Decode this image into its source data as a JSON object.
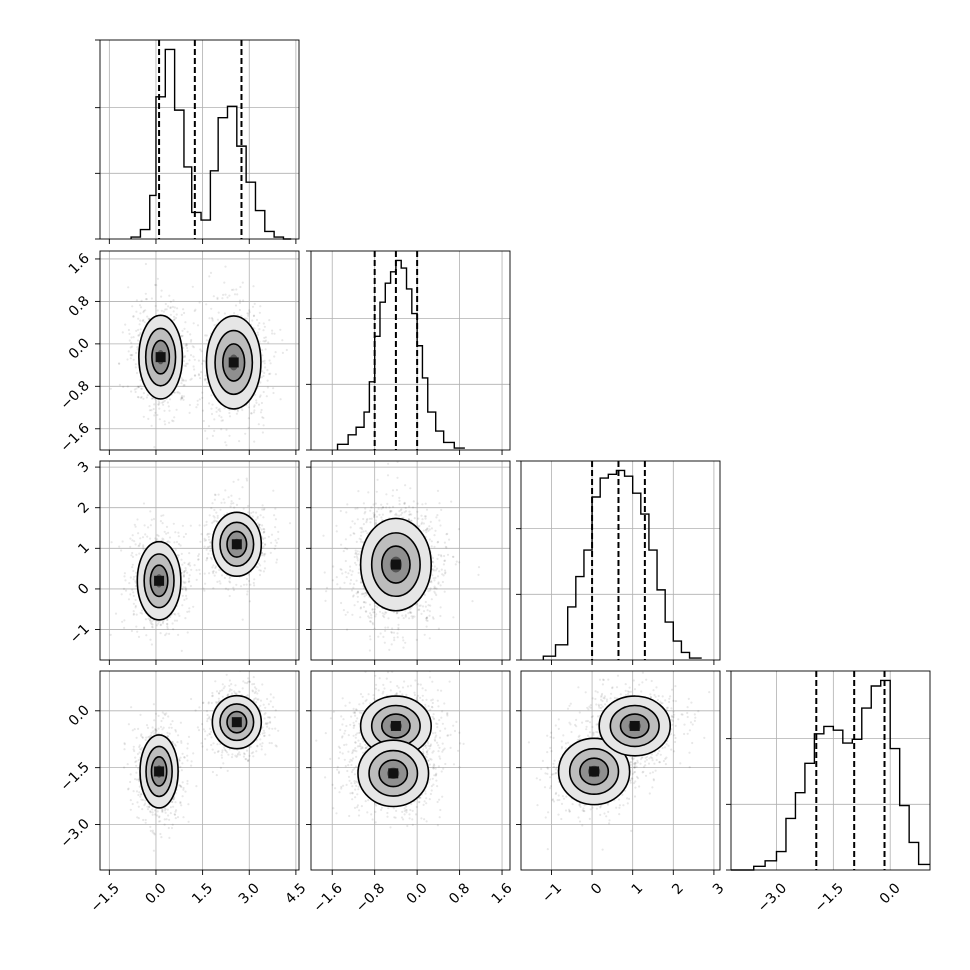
{
  "chart_data": {
    "type": "corner",
    "grid": true,
    "quantiles": [
      0.16,
      0.5,
      0.84
    ],
    "parameters": [
      {
        "range": [
          -1.8,
          4.6
        ],
        "ticks": [
          -1.5,
          0.0,
          1.5,
          3.0,
          4.5
        ],
        "tick_labels": [
          "−1.5",
          "0.0",
          "1.5",
          "3.0",
          "4.5"
        ],
        "quantile_values": [
          0.1,
          1.25,
          2.75
        ],
        "hist_bins": [
          -0.8,
          -0.5,
          -0.2,
          0.0,
          0.3,
          0.6,
          0.9,
          1.15,
          1.45,
          1.75,
          2.0,
          2.3,
          2.6,
          2.9,
          3.2,
          3.5,
          3.8,
          4.1,
          4.35
        ],
        "hist_counts": [
          1,
          5,
          23,
          75,
          100,
          68,
          38,
          14,
          10,
          36,
          64,
          70,
          49,
          30,
          15,
          4,
          1,
          0
        ]
      },
      {
        "range": [
          -2.0,
          1.75
        ],
        "ticks": [
          -1.6,
          -0.8,
          0.0,
          0.8,
          1.6
        ],
        "tick_labels": [
          "−1.6",
          "−0.8",
          "0.0",
          "0.8",
          "1.6"
        ],
        "quantile_values": [
          -0.8,
          -0.4,
          0.0
        ],
        "hist_bins": [
          -1.5,
          -1.3,
          -1.15,
          -1.0,
          -0.9,
          -0.8,
          -0.7,
          -0.6,
          -0.5,
          -0.4,
          -0.3,
          -0.2,
          -0.1,
          0.0,
          0.1,
          0.2,
          0.35,
          0.5,
          0.7,
          0.9
        ],
        "hist_counts": [
          3,
          8,
          12,
          20,
          36,
          60,
          78,
          88,
          94,
          100,
          96,
          85,
          72,
          55,
          38,
          20,
          10,
          4,
          1
        ],
        "qline_units": "display"
      },
      {
        "range": [
          -1.75,
          3.15
        ],
        "ticks": [
          -1,
          0,
          1,
          2,
          3
        ],
        "tick_labels": [
          "−1",
          "0",
          "1",
          "2",
          "3"
        ],
        "quantile_values": [
          0.0,
          0.65,
          1.3
        ],
        "hist_bins": [
          -1.2,
          -0.9,
          -0.6,
          -0.4,
          -0.2,
          0.0,
          0.2,
          0.4,
          0.6,
          0.8,
          1.0,
          1.2,
          1.4,
          1.6,
          1.8,
          2.0,
          2.2,
          2.4,
          2.7
        ],
        "hist_counts": [
          2,
          8,
          28,
          44,
          58,
          86,
          96,
          98,
          100,
          97,
          88,
          77,
          58,
          37,
          20,
          10,
          4,
          1
        ]
      },
      {
        "range": [
          -4.2,
          1.05
        ],
        "ticks": [
          -3.0,
          -1.5,
          0.0
        ],
        "tick_labels": [
          "−3.0",
          "−1.5",
          "0.0"
        ],
        "quantile_values": [
          -1.95,
          -0.95,
          -0.15
        ],
        "hist_bins": [
          -4.2,
          -3.6,
          -3.3,
          -3.0,
          -2.75,
          -2.5,
          -2.25,
          -2.0,
          -1.75,
          -1.5,
          -1.25,
          -1.0,
          -0.75,
          -0.5,
          -0.25,
          0.0,
          0.25,
          0.5,
          0.75,
          1.05
        ],
        "hist_counts": [
          0,
          2,
          5,
          10,
          28,
          42,
          58,
          74,
          78,
          76,
          69,
          71,
          88,
          100,
          103,
          66,
          35,
          15,
          3
        ]
      }
    ],
    "panels_2d": [
      {
        "row": 1,
        "col": 0,
        "clusters": [
          {
            "cx": 0.15,
            "cy": -0.25,
            "sx": 0.4,
            "sy": 0.45,
            "rho": 0.0,
            "n": 750
          },
          {
            "cx": 2.5,
            "cy": -0.35,
            "sx": 0.5,
            "sy": 0.5,
            "rho": 0.0,
            "n": 650
          }
        ]
      },
      {
        "row": 2,
        "col": 0,
        "clusters": [
          {
            "cx": 0.1,
            "cy": 0.2,
            "sx": 0.4,
            "sy": 0.55,
            "rho": 0.0,
            "n": 750
          },
          {
            "cx": 2.6,
            "cy": 1.1,
            "sx": 0.45,
            "sy": 0.45,
            "rho": 0.0,
            "n": 650
          }
        ]
      },
      {
        "row": 3,
        "col": 0,
        "clusters": [
          {
            "cx": 0.1,
            "cy": -1.6,
            "sx": 0.35,
            "sy": 0.55,
            "rho": 0.0,
            "n": 750
          },
          {
            "cx": 2.6,
            "cy": -0.3,
            "sx": 0.45,
            "sy": 0.4,
            "rho": 0.0,
            "n": 650
          }
        ]
      },
      {
        "row": 2,
        "col": 1,
        "clusters": [
          {
            "cx": -0.4,
            "cy": 0.6,
            "sx": 0.38,
            "sy": 0.65,
            "rho": 0.0,
            "n": 1400
          }
        ]
      },
      {
        "row": 3,
        "col": 1,
        "clusters": [
          {
            "cx": -0.4,
            "cy": -0.4,
            "sx": 0.38,
            "sy": 0.45,
            "rho": 0.0,
            "n": 700
          },
          {
            "cx": -0.45,
            "cy": -1.65,
            "sx": 0.38,
            "sy": 0.5,
            "rho": 0.0,
            "n": 700
          }
        ]
      },
      {
        "row": 3,
        "col": 2,
        "clusters": [
          {
            "cx": 0.05,
            "cy": -1.6,
            "sx": 0.5,
            "sy": 0.5,
            "rho": 0.0,
            "n": 700
          },
          {
            "cx": 1.05,
            "cy": -0.4,
            "sx": 0.5,
            "sy": 0.45,
            "rho": 0.0,
            "n": 700
          }
        ]
      }
    ]
  }
}
